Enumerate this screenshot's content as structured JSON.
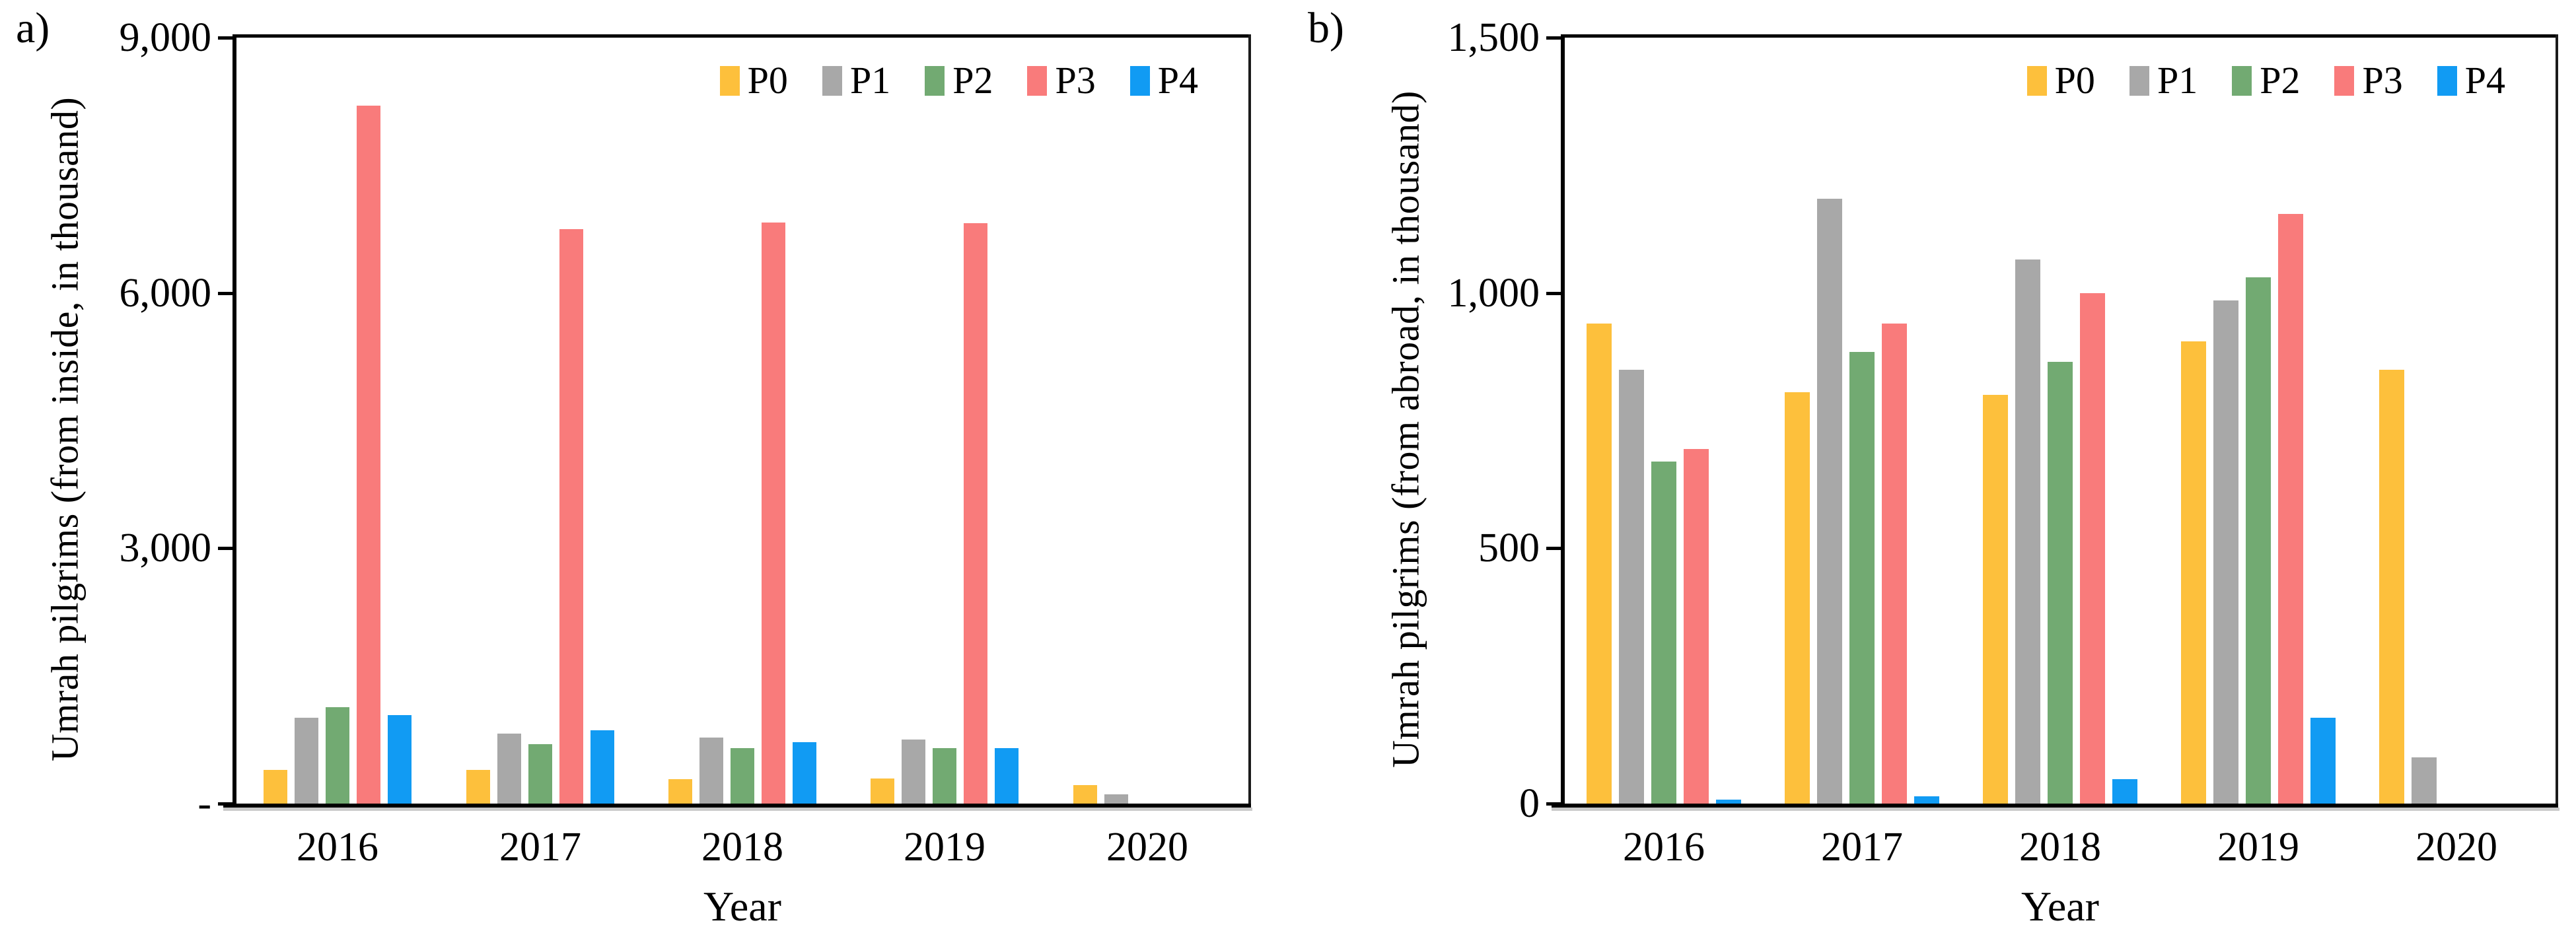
{
  "panels": [
    {
      "label": "a)"
    },
    {
      "label": "b)"
    }
  ],
  "chart_data": [
    {
      "type": "bar",
      "panel": "a)",
      "title": "",
      "xlabel": "Year",
      "ylabel": "Umrah pilgrims (from inside, in thousand)",
      "categories": [
        "2016",
        "2017",
        "2018",
        "2019",
        "2020"
      ],
      "series": [
        {
          "name": "P0",
          "color": "#FDC03C",
          "values": [
            395,
            395,
            285,
            295,
            215
          ]
        },
        {
          "name": "P1",
          "color": "#A8A8A8",
          "values": [
            1010,
            825,
            775,
            750,
            105
          ]
        },
        {
          "name": "P2",
          "color": "#72AA72",
          "values": [
            1135,
            700,
            650,
            650,
            0
          ]
        },
        {
          "name": "P3",
          "color": "#F97B7B",
          "values": [
            8200,
            6750,
            6830,
            6820,
            0
          ]
        },
        {
          "name": "P4",
          "color": "#119BF3",
          "values": [
            1040,
            858,
            722,
            650,
            0
          ]
        }
      ],
      "ylim": [
        0,
        9000
      ],
      "yticks": [
        {
          "value": 9000,
          "label": "9,000"
        },
        {
          "value": 6000,
          "label": "6,000"
        },
        {
          "value": 3000,
          "label": "3,000"
        },
        {
          "value": 0,
          "label": "-"
        }
      ],
      "legend_position": "top-right",
      "grid": false
    },
    {
      "type": "bar",
      "panel": "b)",
      "title": "",
      "xlabel": "Year",
      "ylabel": "Umrah pilgrims (from abroad, in thousand)",
      "categories": [
        "2016",
        "2017",
        "2018",
        "2019",
        "2020"
      ],
      "series": [
        {
          "name": "P0",
          "color": "#FDC03C",
          "values": [
            940,
            805,
            800,
            905,
            850
          ]
        },
        {
          "name": "P1",
          "color": "#A8A8A8",
          "values": [
            850,
            1185,
            1065,
            985,
            90
          ]
        },
        {
          "name": "P2",
          "color": "#72AA72",
          "values": [
            670,
            885,
            865,
            1030,
            0
          ]
        },
        {
          "name": "P3",
          "color": "#F97B7B",
          "values": [
            695,
            940,
            1000,
            1155,
            0
          ]
        },
        {
          "name": "P4",
          "color": "#119BF3",
          "values": [
            8,
            14,
            48,
            168,
            0
          ]
        }
      ],
      "ylim": [
        0,
        1500
      ],
      "yticks": [
        {
          "value": 1500,
          "label": "1,500"
        },
        {
          "value": 1000,
          "label": "1,000"
        },
        {
          "value": 500,
          "label": "500"
        },
        {
          "value": 0,
          "label": "0"
        }
      ],
      "legend_position": "top-right",
      "grid": false
    }
  ]
}
